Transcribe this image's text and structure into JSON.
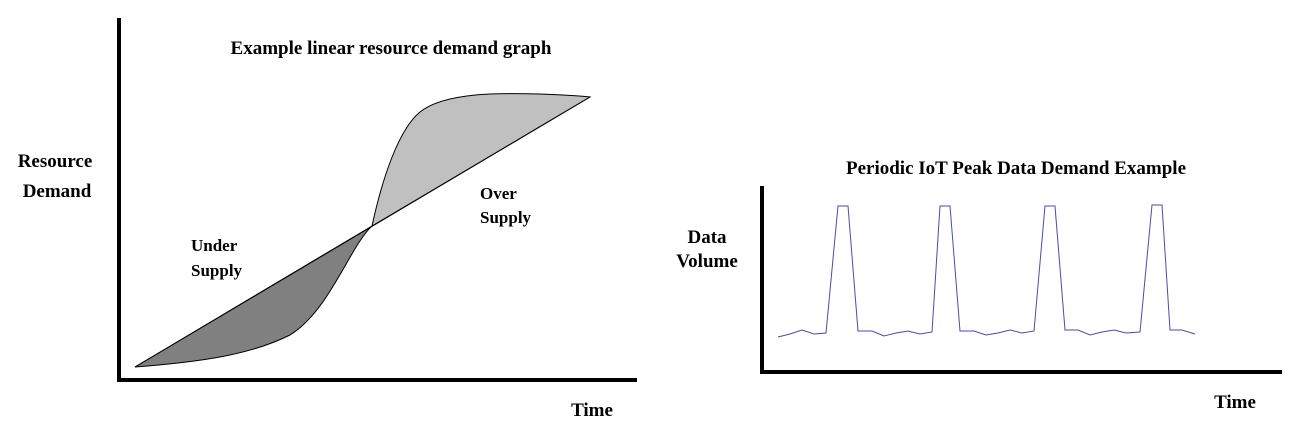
{
  "left_chart": {
    "title": "Example linear resource demand graph",
    "ylabel_line1": "Resource",
    "ylabel_line2": "Demand",
    "xlabel": "Time",
    "under_line1": "Under",
    "under_line2": "Supply",
    "over_line1": "Over",
    "over_line2": "Supply",
    "colors": {
      "under_fill": "#808080",
      "over_fill": "#c0c0c0",
      "line": "#000000"
    }
  },
  "right_chart": {
    "title": "Periodic IoT Peak Data Demand Example",
    "ylabel_line1": "Data",
    "ylabel_line2": "Volume",
    "xlabel": "Time",
    "colors": {
      "line": "#4a4ab0"
    }
  },
  "chart_data": [
    {
      "type": "area",
      "title": "Example linear resource demand graph",
      "xlabel": "Time",
      "ylabel": "Resource Demand",
      "series": [
        {
          "kind": "linear_supply"
        },
        {
          "kind": "s_curve_demand"
        }
      ],
      "annotations": [
        "Under Supply",
        "Over Supply"
      ]
    },
    {
      "type": "line",
      "title": "Periodic IoT Peak Data Demand Example",
      "xlabel": "Time",
      "ylabel": "Data Volume",
      "peaks": 4
    }
  ]
}
